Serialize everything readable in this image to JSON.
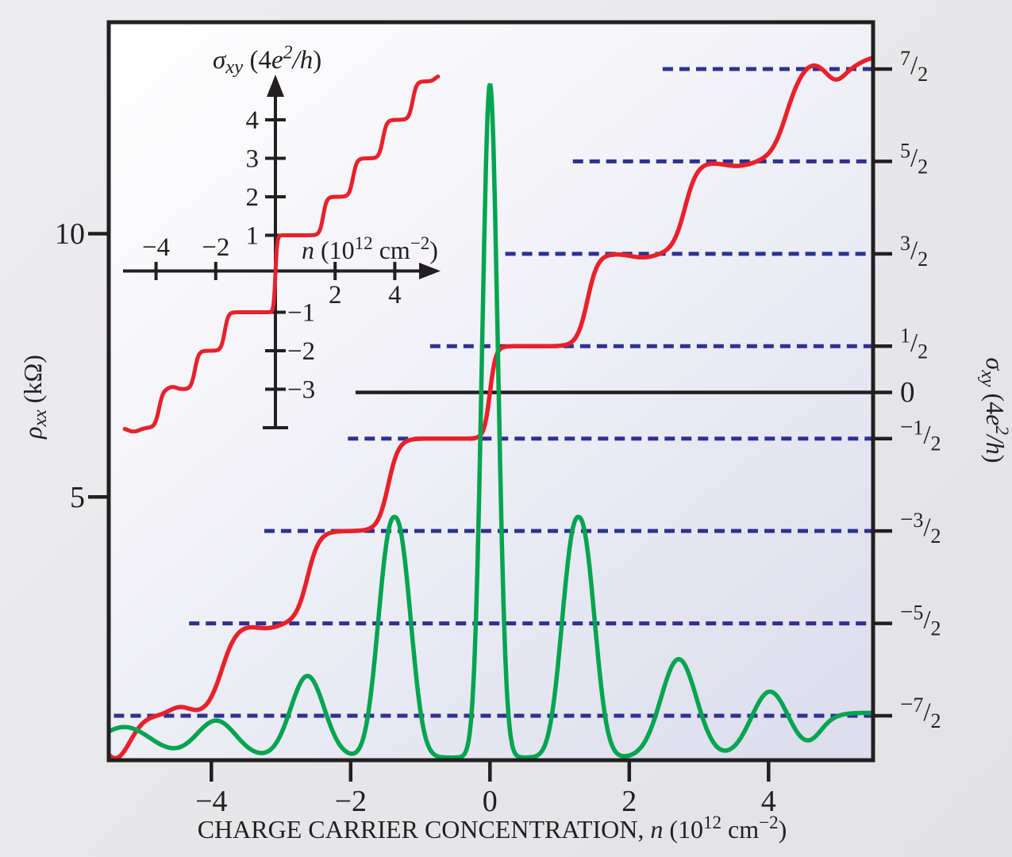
{
  "page": {
    "background": "#e7e7ea",
    "ink": "#231f20"
  },
  "colors": {
    "red_curve": "#e8212b",
    "green_curve": "#00a550",
    "blue_dashed": "#2e3192",
    "frame": "#231f20",
    "plot_bg_from": "#ffffff",
    "plot_bg_to": "#dedeed"
  },
  "axes": {
    "x": {
      "title_segments": [
        {
          "t": "CHARGE CARRIER CONCENTRATION, "
        },
        {
          "t": "n",
          "i": 1
        },
        {
          "t": " (10"
        },
        {
          "t": "12",
          "sup": 1
        },
        {
          "t": " cm"
        },
        {
          "t": "−2",
          "sup": 1
        },
        {
          "t": ")"
        }
      ],
      "ticks": [
        {
          "value": -4,
          "label": "−4"
        },
        {
          "value": -2,
          "label": "−2"
        },
        {
          "value": 0,
          "label": "0"
        },
        {
          "value": 2,
          "label": "2"
        },
        {
          "value": 4,
          "label": "4"
        }
      ],
      "range": [
        -5.47,
        5.5
      ]
    },
    "y_left": {
      "title_segments": [
        {
          "t": "ρ",
          "i": 1
        },
        {
          "t": "xx",
          "i": 1,
          "sub": 1
        },
        {
          "t": " (kΩ)"
        }
      ],
      "ticks": [
        {
          "value": 10,
          "label": "10"
        },
        {
          "value": 5,
          "label": "5"
        }
      ],
      "range": [
        0,
        14
      ]
    },
    "y_right": {
      "title_segments": [
        {
          "t": "σ",
          "i": 1
        },
        {
          "t": "xy",
          "i": 1,
          "sub": 1
        },
        {
          "t": " (4"
        },
        {
          "t": "e",
          "i": 1
        },
        {
          "t": "2",
          "i": 1,
          "sup": 1
        },
        {
          "t": "/",
          "i": 1
        },
        {
          "t": "h",
          "i": 1
        },
        {
          "t": ")"
        }
      ],
      "zero_label": "0",
      "fraction_ticks": [
        {
          "sigma": 3.5,
          "sign": "",
          "num": "7",
          "den": "2"
        },
        {
          "sigma": 2.5,
          "sign": "",
          "num": "5",
          "den": "2"
        },
        {
          "sigma": 1.5,
          "sign": "",
          "num": "3",
          "den": "2"
        },
        {
          "sigma": 0.5,
          "sign": "",
          "num": "1",
          "den": "2"
        },
        {
          "sigma": 0,
          "zero": true
        },
        {
          "sigma": -0.5,
          "sign": "−",
          "num": "1",
          "den": "2"
        },
        {
          "sigma": -1.5,
          "sign": "−",
          "num": "3",
          "den": "2"
        },
        {
          "sigma": -2.5,
          "sign": "−",
          "num": "5",
          "den": "2"
        },
        {
          "sigma": -3.5,
          "sign": "−",
          "num": "7",
          "den": "2"
        }
      ]
    }
  },
  "inset": {
    "title_segments": [
      {
        "t": "σ",
        "i": 1
      },
      {
        "t": "xy",
        "i": 1,
        "sub": 1
      },
      {
        "t": " (4",
        "i": 0
      },
      {
        "t": "e",
        "i": 1
      },
      {
        "t": "2",
        "i": 1,
        "sup": 1
      },
      {
        "t": "/",
        "i": 1
      },
      {
        "t": "h",
        "i": 1
      },
      {
        "t": ")"
      }
    ],
    "x_label_segments": [
      {
        "t": "n",
        "i": 1
      },
      {
        "t": " (10"
      },
      {
        "t": "12",
        "sup": 1
      },
      {
        "t": " cm"
      },
      {
        "t": "−2",
        "sup": 1
      },
      {
        "t": ")"
      }
    ],
    "y_ticks_positive": [
      {
        "value": 4,
        "label": "4"
      },
      {
        "value": 3,
        "label": "3"
      },
      {
        "value": 2,
        "label": "2"
      },
      {
        "value": 1,
        "label": "1"
      }
    ],
    "y_ticks_negative": [
      {
        "value": -1,
        "label": "−1"
      },
      {
        "value": -2,
        "label": "−2"
      },
      {
        "value": -3,
        "label": "−3"
      }
    ],
    "y_axis_end_value": -4,
    "x_ticks": [
      {
        "value": -4,
        "label": "−4",
        "side": "above"
      },
      {
        "value": -2,
        "label": "−2",
        "side": "above"
      },
      {
        "value": 2,
        "label": "2",
        "side": "below"
      },
      {
        "value": 4,
        "label": "4",
        "side": "below"
      }
    ]
  },
  "chart_data": {
    "type": "line",
    "title": "",
    "xlabel": "CHARGE CARRIER CONCENTRATION, n (10^12 cm^-2)",
    "ylabel_left": "rho_xx (kOhm)",
    "ylabel_right": "sigma_xy (4e^2/h)",
    "x_range": [
      -5.47,
      5.5
    ],
    "y_left_range_kOhm": [
      0,
      14
    ],
    "y_right_range_4e2h": [
      -4.0,
      4.0
    ],
    "grid": "off",
    "legend": "none",
    "series": [
      {
        "name": "sigma_xy_monolayer",
        "style": "staircase",
        "color": "#e8212b",
        "units": "4e2/h",
        "plateaus": [
          -3.5,
          -2.5,
          -1.5,
          -0.5,
          0.5,
          1.5,
          2.5,
          3.5
        ],
        "transitions_n": [
          -3.85,
          -2.62,
          -1.46,
          0,
          1.4,
          2.8,
          4.25
        ],
        "model": {
          "base": -3.5,
          "steps": [
            {
              "c": -3.85,
              "s": 0.22,
              "h": 1
            },
            {
              "c": -2.62,
              "s": 0.17,
              "h": 1
            },
            {
              "c": -1.46,
              "s": 0.15,
              "h": 1
            },
            {
              "c": 0,
              "s": 0.085,
              "h": 1
            },
            {
              "c": 1.4,
              "s": 0.15,
              "h": 1
            },
            {
              "c": 2.8,
              "s": 0.18,
              "h": 1
            },
            {
              "c": 4.25,
              "s": 0.22,
              "h": 1
            },
            {
              "c": 5.32,
              "s": 0.2,
              "h": 0.14
            }
          ],
          "bumps": [
            {
              "c": -5.38,
              "w": 0.3,
              "a": -0.46
            },
            {
              "c": -4.45,
              "w": 0.22,
              "a": 0.09
            },
            {
              "c": -3.2,
              "w": 0.25,
              "a": -0.05
            },
            {
              "c": 2.2,
              "w": 0.25,
              "a": -0.04
            },
            {
              "c": 3.55,
              "w": 0.3,
              "a": -0.05
            },
            {
              "c": 4.62,
              "w": 0.2,
              "a": 0.07
            },
            {
              "c": 4.97,
              "w": 0.18,
              "a": -0.12
            }
          ],
          "x_from": -5.47,
          "x_to": 5.5
        }
      },
      {
        "name": "rho_xx",
        "style": "peaks",
        "color": "#00a550",
        "units": "kOhm",
        "peak_list": [
          {
            "n": -3.93,
            "kOhm": 0.7
          },
          {
            "n": -2.62,
            "kOhm": 1.55
          },
          {
            "n": -1.37,
            "kOhm": 4.57
          },
          {
            "n": 0,
            "kOhm": 12.8
          },
          {
            "n": 1.27,
            "kOhm": 4.57
          },
          {
            "n": 2.71,
            "kOhm": 1.87
          },
          {
            "n": 4.02,
            "kOhm": 1.25
          }
        ],
        "model": {
          "baseline": 0.05,
          "peaks": [
            {
              "c": -5.25,
              "h": 0.58,
              "w": 0.55,
              "p": 2
            },
            {
              "c": -3.93,
              "h": 0.7,
              "w": 0.4,
              "p": 2
            },
            {
              "c": -2.62,
              "h": 1.55,
              "w": 0.34,
              "p": 2
            },
            {
              "c": -1.37,
              "h": 4.57,
              "w": 0.3,
              "p": 2.3
            },
            {
              "c": 0,
              "h": 12.8,
              "w": 0.16,
              "p": 2
            },
            {
              "c": 1.27,
              "h": 4.57,
              "w": 0.3,
              "p": 2.3
            },
            {
              "c": 2.71,
              "h": 1.87,
              "w": 0.36,
              "p": 2
            },
            {
              "c": 4.02,
              "h": 1.25,
              "w": 0.38,
              "p": 2
            }
          ],
          "plateau": {
            "c": 4.72,
            "s": 0.22,
            "h": 0.85
          },
          "x_from": -5.47,
          "x_to": 5.5
        }
      },
      {
        "name": "sigma_xy_bilayer_inset",
        "style": "staircase",
        "color": "#e8212b",
        "units": "4e2/h",
        "plateaus": [
          -4,
          -3,
          -2,
          -1,
          1,
          2,
          3,
          4,
          5
        ],
        "transitions_n": [
          -3.9,
          -2.7,
          -1.7,
          0,
          1.6,
          2.6,
          3.6,
          4.6
        ],
        "model": {
          "base": -4,
          "steps": [
            {
              "c": -3.9,
              "s": 0.14,
              "h": 1
            },
            {
              "c": -2.7,
              "s": 0.13,
              "h": 1
            },
            {
              "c": -1.7,
              "s": 0.12,
              "h": 1
            },
            {
              "c": 0,
              "s": 0.06,
              "h": 2
            },
            {
              "c": 1.6,
              "s": 0.12,
              "h": 1
            },
            {
              "c": 2.6,
              "s": 0.13,
              "h": 1
            },
            {
              "c": 3.6,
              "s": 0.13,
              "h": 1
            },
            {
              "c": 4.6,
              "s": 0.13,
              "h": 1
            },
            {
              "c": 5.35,
              "s": 0.12,
              "h": 0.15
            }
          ],
          "bumps": [
            {
              "c": -4.75,
              "w": 0.28,
              "a": -0.1
            },
            {
              "c": -3.45,
              "w": 0.2,
              "a": 0.06
            }
          ],
          "x_from": -5.05,
          "x_to": 5.45
        }
      }
    ],
    "plateau_guides": [
      {
        "sigma": 3.5,
        "start_n": 2.48
      },
      {
        "sigma": 2.5,
        "start_n": 1.19
      },
      {
        "sigma": 1.5,
        "start_n": 0.22
      },
      {
        "sigma": 0.5,
        "start_n": -0.86
      },
      {
        "sigma": -0.5,
        "start_n": -2.04
      },
      {
        "sigma": -1.5,
        "start_n": -3.24
      },
      {
        "sigma": -2.5,
        "start_n": -4.32
      },
      {
        "sigma": -3.5,
        "start_n": -5.4
      }
    ],
    "zero_line": {
      "sigma": 0,
      "start_n": -1.93
    }
  }
}
